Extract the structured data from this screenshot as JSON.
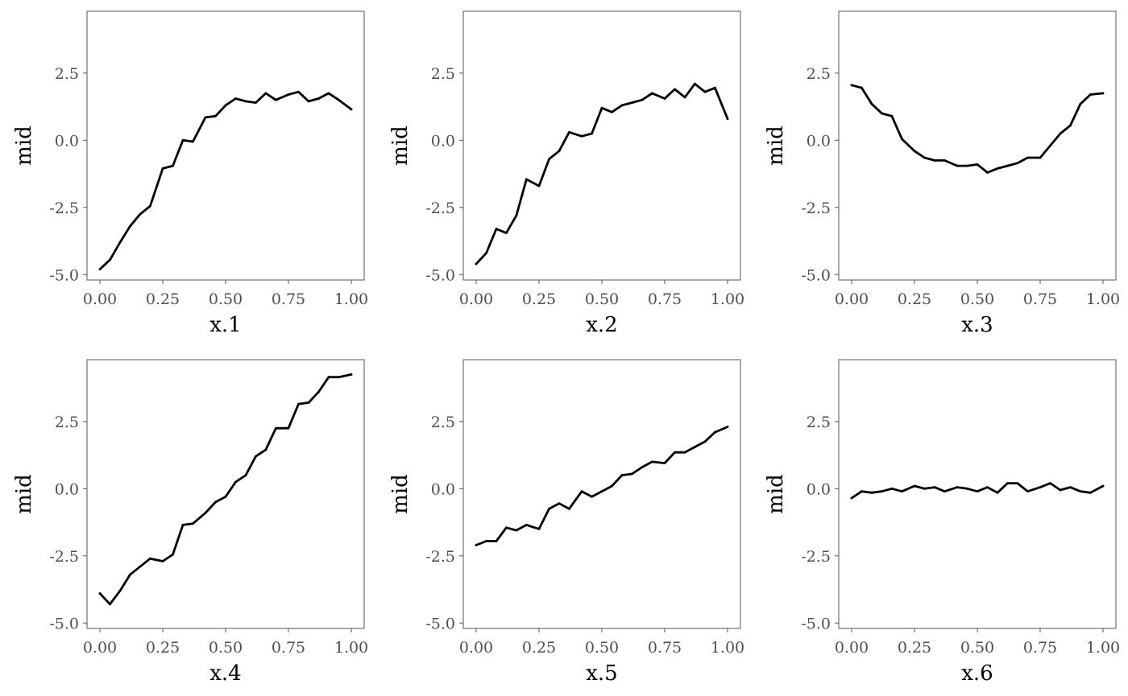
{
  "chart_data": [
    {
      "type": "line",
      "xlabel": "x.1",
      "ylabel": "mid",
      "xlim": [
        0,
        1
      ],
      "ylim": [
        -5.2,
        4.8
      ],
      "xticks": [
        "0.00",
        "0.25",
        "0.50",
        "0.75",
        "1.00"
      ],
      "yticks": [
        "-5.0",
        "-2.5",
        "0.0",
        "2.5"
      ],
      "grid": false,
      "x": [
        0.0,
        0.04,
        0.08,
        0.12,
        0.16,
        0.2,
        0.25,
        0.29,
        0.33,
        0.37,
        0.42,
        0.46,
        0.5,
        0.54,
        0.58,
        0.62,
        0.66,
        0.7,
        0.75,
        0.79,
        0.83,
        0.87,
        0.91,
        0.95,
        1.0
      ],
      "y": [
        -4.8,
        -4.45,
        -3.8,
        -3.2,
        -2.75,
        -2.45,
        -1.05,
        -0.95,
        0.0,
        -0.05,
        0.85,
        0.9,
        1.3,
        1.55,
        1.45,
        1.4,
        1.75,
        1.5,
        1.7,
        1.8,
        1.45,
        1.55,
        1.75,
        1.5,
        1.15
      ]
    },
    {
      "type": "line",
      "xlabel": "x.2",
      "ylabel": "mid",
      "xlim": [
        0,
        1
      ],
      "ylim": [
        -5.2,
        4.8
      ],
      "xticks": [
        "0.00",
        "0.25",
        "0.50",
        "0.75",
        "1.00"
      ],
      "yticks": [
        "-5.0",
        "-2.5",
        "0.0",
        "2.5"
      ],
      "grid": false,
      "x": [
        0.0,
        0.04,
        0.08,
        0.12,
        0.16,
        0.2,
        0.25,
        0.29,
        0.33,
        0.37,
        0.42,
        0.46,
        0.5,
        0.54,
        0.58,
        0.62,
        0.66,
        0.7,
        0.75,
        0.79,
        0.83,
        0.87,
        0.91,
        0.95,
        1.0
      ],
      "y": [
        -4.6,
        -4.2,
        -3.3,
        -3.45,
        -2.8,
        -1.45,
        -1.7,
        -0.7,
        -0.4,
        0.3,
        0.15,
        0.25,
        1.2,
        1.05,
        1.3,
        1.4,
        1.5,
        1.75,
        1.55,
        1.9,
        1.6,
        2.1,
        1.8,
        1.95,
        0.8
      ]
    },
    {
      "type": "line",
      "xlabel": "x.3",
      "ylabel": "mid",
      "xlim": [
        0,
        1
      ],
      "ylim": [
        -5.2,
        4.8
      ],
      "xticks": [
        "0.00",
        "0.25",
        "0.50",
        "0.75",
        "1.00"
      ],
      "yticks": [
        "-5.0",
        "-2.5",
        "0.0",
        "2.5"
      ],
      "grid": false,
      "x": [
        0.0,
        0.04,
        0.08,
        0.12,
        0.16,
        0.2,
        0.25,
        0.29,
        0.33,
        0.37,
        0.42,
        0.46,
        0.5,
        0.54,
        0.58,
        0.62,
        0.66,
        0.7,
        0.75,
        0.79,
        0.83,
        0.87,
        0.91,
        0.95,
        1.0
      ],
      "y": [
        2.05,
        1.95,
        1.35,
        1.0,
        0.9,
        0.05,
        -0.4,
        -0.65,
        -0.75,
        -0.75,
        -0.95,
        -0.95,
        -0.9,
        -1.2,
        -1.05,
        -0.95,
        -0.85,
        -0.65,
        -0.65,
        -0.2,
        0.25,
        0.55,
        1.35,
        1.7,
        1.75
      ]
    },
    {
      "type": "line",
      "xlabel": "x.4",
      "ylabel": "mid",
      "xlim": [
        0,
        1
      ],
      "ylim": [
        -5.2,
        4.8
      ],
      "xticks": [
        "0.00",
        "0.25",
        "0.50",
        "0.75",
        "1.00"
      ],
      "yticks": [
        "-5.0",
        "-2.5",
        "0.0",
        "2.5"
      ],
      "grid": false,
      "x": [
        0.0,
        0.04,
        0.08,
        0.12,
        0.16,
        0.2,
        0.25,
        0.29,
        0.33,
        0.37,
        0.42,
        0.46,
        0.5,
        0.54,
        0.58,
        0.62,
        0.66,
        0.7,
        0.75,
        0.79,
        0.83,
        0.87,
        0.91,
        0.95,
        1.0
      ],
      "y": [
        -3.9,
        -4.3,
        -3.8,
        -3.2,
        -2.9,
        -2.6,
        -2.7,
        -2.45,
        -1.35,
        -1.3,
        -0.9,
        -0.5,
        -0.3,
        0.25,
        0.5,
        1.2,
        1.45,
        2.25,
        2.25,
        3.15,
        3.2,
        3.6,
        4.15,
        4.15,
        4.25
      ]
    },
    {
      "type": "line",
      "xlabel": "x.5",
      "ylabel": "mid",
      "xlim": [
        0,
        1
      ],
      "ylim": [
        -5.2,
        4.8
      ],
      "xticks": [
        "0.00",
        "0.25",
        "0.50",
        "0.75",
        "1.00"
      ],
      "yticks": [
        "-5.0",
        "-2.5",
        "0.0",
        "2.5"
      ],
      "grid": false,
      "x": [
        0.0,
        0.04,
        0.08,
        0.12,
        0.16,
        0.2,
        0.25,
        0.29,
        0.33,
        0.37,
        0.42,
        0.46,
        0.5,
        0.54,
        0.58,
        0.62,
        0.66,
        0.7,
        0.75,
        0.79,
        0.83,
        0.87,
        0.91,
        0.95,
        1.0
      ],
      "y": [
        -2.1,
        -1.95,
        -1.95,
        -1.45,
        -1.55,
        -1.35,
        -1.5,
        -0.75,
        -0.55,
        -0.75,
        -0.1,
        -0.3,
        -0.1,
        0.1,
        0.5,
        0.55,
        0.8,
        1.0,
        0.95,
        1.35,
        1.35,
        1.55,
        1.75,
        2.1,
        2.3
      ]
    },
    {
      "type": "line",
      "xlabel": "x.6",
      "ylabel": "mid",
      "xlim": [
        0,
        1
      ],
      "ylim": [
        -5.2,
        4.8
      ],
      "xticks": [
        "0.00",
        "0.25",
        "0.50",
        "0.75",
        "1.00"
      ],
      "yticks": [
        "-5.0",
        "-2.5",
        "0.0",
        "2.5"
      ],
      "grid": false,
      "x": [
        0.0,
        0.04,
        0.08,
        0.12,
        0.16,
        0.2,
        0.25,
        0.29,
        0.33,
        0.37,
        0.42,
        0.46,
        0.5,
        0.54,
        0.58,
        0.62,
        0.66,
        0.7,
        0.75,
        0.79,
        0.83,
        0.87,
        0.91,
        0.95,
        1.0
      ],
      "y": [
        -0.35,
        -0.1,
        -0.15,
        -0.1,
        0.0,
        -0.1,
        0.1,
        0.0,
        0.05,
        -0.1,
        0.05,
        0.0,
        -0.1,
        0.05,
        -0.15,
        0.2,
        0.2,
        -0.1,
        0.05,
        0.2,
        -0.05,
        0.05,
        -0.1,
        -0.15,
        0.1
      ]
    }
  ]
}
